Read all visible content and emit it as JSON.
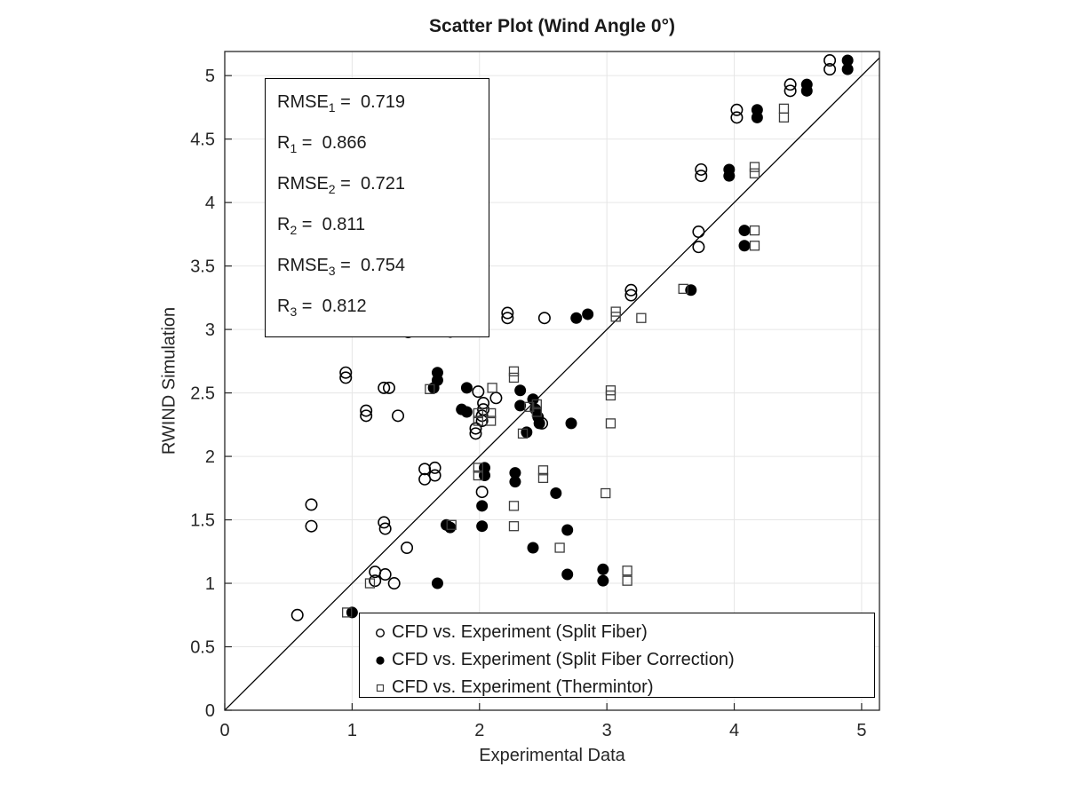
{
  "chart_data": {
    "type": "scatter",
    "title": "Scatter Plot (Wind Angle 0°)",
    "xlabel": "Experimental Data",
    "ylabel": "RWIND Simulation",
    "xlim": [
      0,
      5.14
    ],
    "ylim": [
      0,
      5.19
    ],
    "x_ticks": [
      0,
      1,
      2,
      3,
      4,
      5
    ],
    "y_ticks": [
      0,
      0.5,
      1,
      1.5,
      2,
      2.5,
      3,
      3.5,
      4,
      4.5,
      5
    ],
    "x_gridlines": [
      1,
      2,
      3,
      4,
      5
    ],
    "y_gridlines": [
      0.5,
      1,
      1.5,
      2,
      2.5,
      3,
      3.5,
      4,
      4.5,
      5
    ],
    "grid_on": true,
    "grid_color": "#e6e6e6",
    "axis_color": "#262626",
    "marker_color": "#000000",
    "square_color": "#3d3d3d",
    "reference_line": {
      "from": [
        0,
        0
      ],
      "to": [
        5.14,
        5.14
      ],
      "color": "#000000"
    },
    "stats_box": {
      "lines": [
        {
          "name": "RMSE",
          "sub": "1",
          "value": "0.719"
        },
        {
          "name": "R",
          "sub": "1",
          "value": "0.866"
        },
        {
          "name": "RMSE",
          "sub": "2",
          "value": "0.721"
        },
        {
          "name": "R",
          "sub": "2",
          "value": "0.811"
        },
        {
          "name": "RMSE",
          "sub": "3",
          "value": "0.754"
        },
        {
          "name": "R",
          "sub": "3",
          "value": "0.812"
        }
      ]
    },
    "legend": {
      "position": "south",
      "items": [
        {
          "marker": "open-circle",
          "label": "CFD vs. Experiment (Split Fiber)"
        },
        {
          "marker": "filled-circle",
          "label": "CFD vs. Experiment (Split Fiber Correction)"
        },
        {
          "marker": "open-square",
          "label": "CFD vs. Experiment (Thermintor)"
        }
      ]
    },
    "series": [
      {
        "name": "CFD vs. Experiment (Split Fiber)",
        "marker": "open-circle",
        "points": [
          [
            0.57,
            0.75
          ],
          [
            0.68,
            1.62
          ],
          [
            0.68,
            1.45
          ],
          [
            0.95,
            2.66
          ],
          [
            0.95,
            2.62
          ],
          [
            1.11,
            2.36
          ],
          [
            1.11,
            2.32
          ],
          [
            1.18,
            1.09
          ],
          [
            1.18,
            1.02
          ],
          [
            1.25,
            2.54
          ],
          [
            1.29,
            2.54
          ],
          [
            1.25,
            1.48
          ],
          [
            1.26,
            1.43
          ],
          [
            1.26,
            1.07
          ],
          [
            1.33,
            1.0
          ],
          [
            1.36,
            2.32
          ],
          [
            1.43,
            1.28
          ],
          [
            1.44,
            3.04
          ],
          [
            1.44,
            2.98
          ],
          [
            1.57,
            1.9
          ],
          [
            1.57,
            1.82
          ],
          [
            1.65,
            1.91
          ],
          [
            1.65,
            1.85
          ],
          [
            1.97,
            2.22
          ],
          [
            1.97,
            2.18
          ],
          [
            1.99,
            2.51
          ],
          [
            2.02,
            2.32
          ],
          [
            2.02,
            2.28
          ],
          [
            2.03,
            2.42
          ],
          [
            2.03,
            2.37
          ],
          [
            2.02,
            1.72
          ],
          [
            2.13,
            2.46
          ],
          [
            2.22,
            3.13
          ],
          [
            2.22,
            3.09
          ],
          [
            2.49,
            2.26
          ],
          [
            2.51,
            3.09
          ],
          [
            3.19,
            3.31
          ],
          [
            3.19,
            3.27
          ],
          [
            3.72,
            3.77
          ],
          [
            3.72,
            3.65
          ],
          [
            3.74,
            4.26
          ],
          [
            3.74,
            4.21
          ],
          [
            4.02,
            4.73
          ],
          [
            4.02,
            4.67
          ],
          [
            4.44,
            4.93
          ],
          [
            4.44,
            4.88
          ],
          [
            4.75,
            5.12
          ],
          [
            4.75,
            5.05
          ]
        ]
      },
      {
        "name": "CFD vs. Experiment (Split Fiber Correction)",
        "marker": "filled-circle",
        "points": [
          [
            1.0,
            0.77
          ],
          [
            1.64,
            2.54
          ],
          [
            1.67,
            2.66
          ],
          [
            1.67,
            2.6
          ],
          [
            1.67,
            1.0
          ],
          [
            1.74,
            1.46
          ],
          [
            1.77,
            1.44
          ],
          [
            1.77,
            3.04
          ],
          [
            1.77,
            2.98
          ],
          [
            1.86,
            2.37
          ],
          [
            1.9,
            2.35
          ],
          [
            1.9,
            2.54
          ],
          [
            2.02,
            1.61
          ],
          [
            2.02,
            1.45
          ],
          [
            2.04,
            1.91
          ],
          [
            2.04,
            1.85
          ],
          [
            2.28,
            1.87
          ],
          [
            2.28,
            1.8
          ],
          [
            2.32,
            2.52
          ],
          [
            2.32,
            2.4
          ],
          [
            2.37,
            2.19
          ],
          [
            2.42,
            2.45
          ],
          [
            2.44,
            2.37
          ],
          [
            2.46,
            2.31
          ],
          [
            2.47,
            2.26
          ],
          [
            2.42,
            1.28
          ],
          [
            2.6,
            1.71
          ],
          [
            2.69,
            1.42
          ],
          [
            2.69,
            1.07
          ],
          [
            2.72,
            2.26
          ],
          [
            2.76,
            3.09
          ],
          [
            2.85,
            3.12
          ],
          [
            2.97,
            1.11
          ],
          [
            2.97,
            1.02
          ],
          [
            3.66,
            3.31
          ],
          [
            3.96,
            4.26
          ],
          [
            3.96,
            4.21
          ],
          [
            4.08,
            3.78
          ],
          [
            4.08,
            3.66
          ],
          [
            4.18,
            4.73
          ],
          [
            4.18,
            4.67
          ],
          [
            4.57,
            4.93
          ],
          [
            4.57,
            4.88
          ],
          [
            4.89,
            5.12
          ],
          [
            4.89,
            5.05
          ]
        ]
      },
      {
        "name": "CFD vs. Experiment (Thermintor)",
        "marker": "open-square",
        "points": [
          [
            0.96,
            0.77
          ],
          [
            1.14,
            1.0
          ],
          [
            1.61,
            2.53
          ],
          [
            1.78,
            1.46
          ],
          [
            1.99,
            1.91
          ],
          [
            1.99,
            1.85
          ],
          [
            1.99,
            2.34
          ],
          [
            1.99,
            2.28
          ],
          [
            2.03,
            3.04
          ],
          [
            2.03,
            2.98
          ],
          [
            2.09,
            2.34
          ],
          [
            2.09,
            2.28
          ],
          [
            2.1,
            2.54
          ],
          [
            2.27,
            2.67
          ],
          [
            2.27,
            2.62
          ],
          [
            2.27,
            1.61
          ],
          [
            2.27,
            1.45
          ],
          [
            2.34,
            2.18
          ],
          [
            2.39,
            2.39
          ],
          [
            2.45,
            2.41
          ],
          [
            2.45,
            2.35
          ],
          [
            2.5,
            1.89
          ],
          [
            2.5,
            1.83
          ],
          [
            2.63,
            1.28
          ],
          [
            2.99,
            1.71
          ],
          [
            3.03,
            2.52
          ],
          [
            3.03,
            2.48
          ],
          [
            3.03,
            2.26
          ],
          [
            3.07,
            3.14
          ],
          [
            3.07,
            3.1
          ],
          [
            3.16,
            1.1
          ],
          [
            3.16,
            1.02
          ],
          [
            3.27,
            3.09
          ],
          [
            3.6,
            3.32
          ],
          [
            4.16,
            4.28
          ],
          [
            4.16,
            4.23
          ],
          [
            4.16,
            3.78
          ],
          [
            4.16,
            3.66
          ],
          [
            4.39,
            4.74
          ],
          [
            4.39,
            4.67
          ]
        ]
      }
    ]
  }
}
